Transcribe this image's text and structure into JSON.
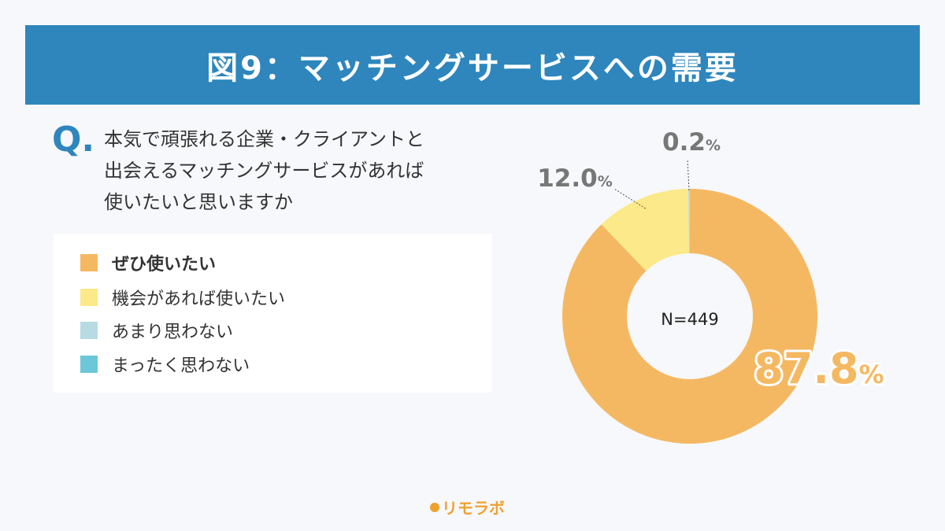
{
  "header": {
    "title": "図9：マッチングサービスへの需要"
  },
  "question": {
    "mark": "Q.",
    "lines": [
      "本気で頑張れる企業・クライアントと",
      "出会えるマッチングサービスがあれば",
      "使いたいと思いますか"
    ]
  },
  "legend": {
    "items": [
      {
        "label": "ぜひ使いたい",
        "color": "#f5b862",
        "bold": true
      },
      {
        "label": "機会があれば使いたい",
        "color": "#fbe98a",
        "bold": false
      },
      {
        "label": "あまり思わない",
        "color": "#b7dbe2",
        "bold": false
      },
      {
        "label": "まったく思わない",
        "color": "#6cc7d8",
        "bold": false
      }
    ]
  },
  "chart_data": {
    "type": "pie",
    "donut": true,
    "center_label": "N=449",
    "slices": [
      {
        "label": "ぜひ使いたい",
        "value": 87.8,
        "display": "87.8",
        "color": "#f5b862"
      },
      {
        "label": "機会があれば使いたい",
        "value": 12.0,
        "display": "12.0",
        "color": "#fbe98a"
      },
      {
        "label": "あまり思わない",
        "value": 0.2,
        "display": "0.2",
        "color": "#b7dbe2"
      },
      {
        "label": "まったく思わない",
        "value": 0.0,
        "display": "",
        "color": "#6cc7d8"
      }
    ],
    "unit": "%"
  },
  "footer": {
    "logo_text": "リモラボ"
  }
}
